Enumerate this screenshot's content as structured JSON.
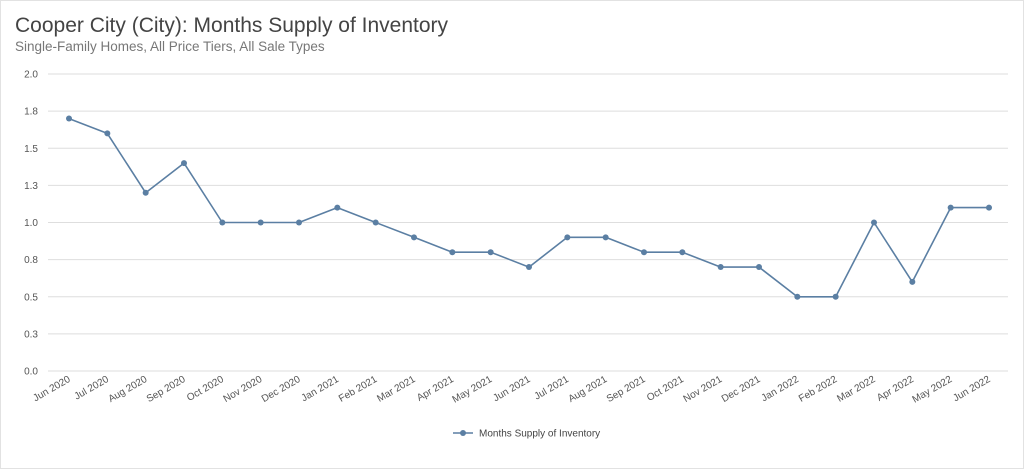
{
  "header": {
    "title": "Cooper City (City): Months Supply of Inventory",
    "subtitle": "Single-Family Homes, All Price Tiers, All Sale Types"
  },
  "colors": {
    "series": "#5b7fa3",
    "grid": "#dedede",
    "axis_text": "#555555"
  },
  "chart_data": {
    "type": "line",
    "title": "Cooper City (City): Months Supply of Inventory",
    "subtitle": "Single-Family Homes, All Price Tiers, All Sale Types",
    "xlabel": "",
    "ylabel": "",
    "ylim": [
      0,
      2.0
    ],
    "y_ticks": [
      "0.0",
      "0.3",
      "0.5",
      "0.8",
      "1.0",
      "1.3",
      "1.5",
      "1.8",
      "2.0"
    ],
    "grid": true,
    "legend_position": "bottom-center",
    "categories": [
      "Jun 2020",
      "Jul 2020",
      "Aug 2020",
      "Sep 2020",
      "Oct 2020",
      "Nov 2020",
      "Dec 2020",
      "Jan 2021",
      "Feb 2021",
      "Mar 2021",
      "Apr 2021",
      "May 2021",
      "Jun 2021",
      "Jul 2021",
      "Aug 2021",
      "Sep 2021",
      "Oct 2021",
      "Nov 2021",
      "Dec 2021",
      "Jan 2022",
      "Feb 2022",
      "Mar 2022",
      "Apr 2022",
      "May 2022",
      "Jun 2022"
    ],
    "series": [
      {
        "name": "Months Supply of Inventory",
        "values": [
          1.7,
          1.6,
          1.2,
          1.4,
          1.0,
          1.0,
          1.0,
          1.1,
          1.0,
          0.9,
          0.8,
          0.8,
          0.7,
          0.9,
          0.9,
          0.8,
          0.8,
          0.7,
          0.7,
          0.5,
          0.5,
          1.0,
          0.6,
          1.1,
          1.1
        ]
      }
    ]
  }
}
